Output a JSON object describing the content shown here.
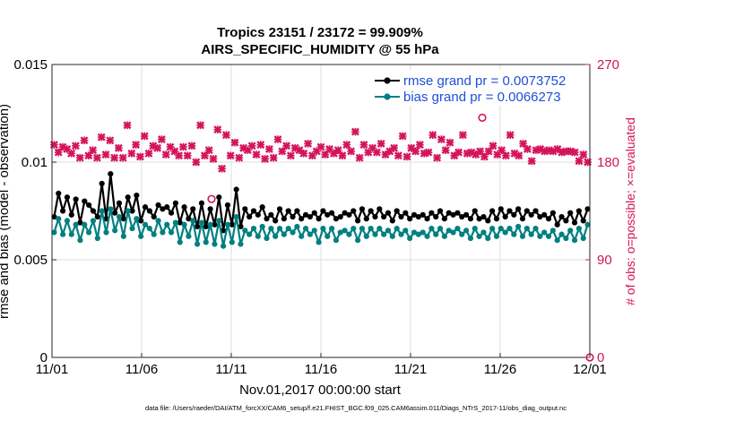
{
  "chart_data": {
    "type": "line",
    "title": "Tropics 23151 / 23172 = 99.909%",
    "subtitle": "AIRS_SPECIFIC_HUMIDITY @ 55 hPa",
    "xlabel": "Nov.01,2017 00:00:00 start",
    "ylabel": "rmse and bias (model - observation)",
    "y2label": "# of obs: o=possible; ×=evaluated",
    "footer": "data file: /Users/raeder/DAI/ATM_forcXX/CAM6_setup/f.e21.FHIST_BGC.f09_025.CAM6assim.011/Diags_NTrS_2017-11/obs_diag_output.nc",
    "xlim": [
      0,
      30
    ],
    "ylim": [
      0,
      0.015
    ],
    "y2lim": [
      0,
      270
    ],
    "x_ticks": [
      0,
      5,
      10,
      15,
      20,
      25,
      30
    ],
    "x_tick_labels": [
      "11/01",
      "11/06",
      "11/11",
      "11/16",
      "11/21",
      "11/26",
      "12/01"
    ],
    "y_ticks": [
      0,
      0.005,
      0.01,
      0.015
    ],
    "y_tick_labels": [
      "0",
      "0.005",
      "0.01",
      "0.015"
    ],
    "y2_ticks": [
      0,
      90,
      180,
      270
    ],
    "y2_tick_labels": [
      "0",
      "90",
      "180",
      "270"
    ],
    "series": [
      {
        "name": "rmse grand pr = 0.0073752",
        "color": "#000000",
        "values": [
          0.0072,
          0.0084,
          0.0075,
          0.0082,
          0.0073,
          0.0081,
          0.0069,
          0.008,
          0.0078,
          0.0075,
          0.0072,
          0.0089,
          0.0071,
          0.0094,
          0.0074,
          0.0079,
          0.0071,
          0.0082,
          0.0075,
          0.0083,
          0.007,
          0.0077,
          0.0075,
          0.0072,
          0.0078,
          0.0076,
          0.0077,
          0.0074,
          0.0079,
          0.0069,
          0.0077,
          0.0071,
          0.0076,
          0.0067,
          0.0079,
          0.0067,
          0.0076,
          0.0068,
          0.0082,
          0.0065,
          0.0078,
          0.0068,
          0.0086,
          0.0067,
          0.0076,
          0.0072,
          0.0075,
          0.0073,
          0.0077,
          0.0071,
          0.0073,
          0.007,
          0.0076,
          0.0071,
          0.0075,
          0.0072,
          0.0075,
          0.0071,
          0.0073,
          0.0072,
          0.0074,
          0.0071,
          0.0075,
          0.0073,
          0.0074,
          0.0071,
          0.0072,
          0.0074,
          0.0073,
          0.0075,
          0.007,
          0.0076,
          0.0071,
          0.0075,
          0.0072,
          0.0076,
          0.0072,
          0.0074,
          0.007,
          0.0075,
          0.0072,
          0.0074,
          0.0071,
          0.0073,
          0.0072,
          0.0073,
          0.0071,
          0.0074,
          0.0072,
          0.0075,
          0.0071,
          0.0074,
          0.0073,
          0.0074,
          0.0072,
          0.0073,
          0.0071,
          0.0075,
          0.0071,
          0.0072,
          0.007,
          0.0075,
          0.0071,
          0.0076,
          0.0072,
          0.0075,
          0.0073,
          0.0076,
          0.0071,
          0.0075,
          0.0073,
          0.0075,
          0.0072,
          0.0073,
          0.0071,
          0.0074,
          0.0068,
          0.0072,
          0.007,
          0.0074,
          0.0069,
          0.0075,
          0.007,
          0.0076
        ]
      },
      {
        "name": "bias grand pr = 0.0066273",
        "color": "#008080",
        "values": [
          0.0064,
          0.0071,
          0.0063,
          0.007,
          0.0063,
          0.0068,
          0.006,
          0.0068,
          0.0064,
          0.007,
          0.0061,
          0.0075,
          0.0064,
          0.0076,
          0.0065,
          0.0072,
          0.0062,
          0.0075,
          0.0066,
          0.0071,
          0.0062,
          0.0068,
          0.0066,
          0.0063,
          0.007,
          0.0064,
          0.0068,
          0.0064,
          0.0069,
          0.0059,
          0.0068,
          0.0062,
          0.007,
          0.0058,
          0.0069,
          0.0059,
          0.0068,
          0.0058,
          0.007,
          0.0057,
          0.0068,
          0.0059,
          0.0072,
          0.0058,
          0.0065,
          0.0063,
          0.0066,
          0.0062,
          0.0067,
          0.0061,
          0.0066,
          0.0062,
          0.0066,
          0.0063,
          0.0066,
          0.0064,
          0.0067,
          0.0062,
          0.0066,
          0.0063,
          0.0065,
          0.0059,
          0.0066,
          0.0062,
          0.0066,
          0.006,
          0.0064,
          0.0065,
          0.0063,
          0.0066,
          0.006,
          0.0066,
          0.0062,
          0.0066,
          0.0063,
          0.0066,
          0.0063,
          0.0065,
          0.0062,
          0.0066,
          0.0063,
          0.0065,
          0.0061,
          0.0064,
          0.0063,
          0.0064,
          0.0062,
          0.0066,
          0.0063,
          0.0066,
          0.0062,
          0.0065,
          0.0064,
          0.0066,
          0.0063,
          0.0065,
          0.0061,
          0.0066,
          0.0062,
          0.0064,
          0.0061,
          0.0066,
          0.0062,
          0.0066,
          0.0064,
          0.0066,
          0.0063,
          0.0067,
          0.0062,
          0.0066,
          0.0063,
          0.0066,
          0.0062,
          0.0064,
          0.0062,
          0.0065,
          0.006,
          0.0063,
          0.0061,
          0.0065,
          0.006,
          0.0066,
          0.0061,
          0.0068
        ]
      }
    ],
    "obs_evaluated": {
      "axis": "right",
      "color": "#d4145a",
      "marker": "x",
      "values": [
        196,
        189,
        194,
        192,
        188,
        195,
        184,
        200,
        186,
        191,
        184,
        203,
        187,
        200,
        184,
        193,
        184,
        214,
        188,
        196,
        185,
        204,
        188,
        195,
        193,
        201,
        187,
        194,
        190,
        186,
        194,
        186,
        195,
        180,
        214,
        186,
        191,
        183,
        210,
        174,
        205,
        186,
        198,
        184,
        193,
        191,
        195,
        187,
        196,
        183,
        192,
        184,
        201,
        190,
        195,
        186,
        193,
        191,
        188,
        197,
        186,
        190,
        194,
        187,
        192,
        188,
        191,
        186,
        196,
        190,
        208,
        184,
        196,
        189,
        193,
        189,
        197,
        187,
        190,
        193,
        186,
        204,
        185,
        193,
        190,
        196,
        188,
        189,
        205,
        184,
        201,
        191,
        198,
        186,
        189,
        205,
        188,
        189,
        187,
        190,
        185,
        190,
        195,
        187,
        191,
        186,
        205,
        188,
        186,
        197,
        192,
        181,
        191,
        192,
        190,
        191,
        190,
        192,
        189,
        190,
        190,
        189,
        181,
        187,
        180
      ]
    },
    "obs_possible_markers": [
      {
        "x": 8.9,
        "y2": 146
      },
      {
        "x": 24.0,
        "y2": 221
      },
      {
        "x": 30.0,
        "y2": 0
      }
    ]
  }
}
